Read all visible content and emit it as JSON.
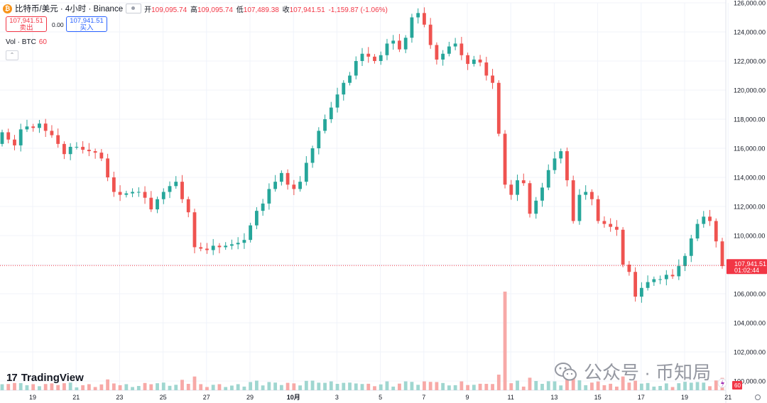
{
  "header": {
    "coin_symbol": "₿",
    "symbol": "比特币/美元 · 4小时 · Binance",
    "ohlc": [
      {
        "label": "开",
        "value": "109,095.74"
      },
      {
        "label": "高",
        "value": "109,095.74"
      },
      {
        "label": "低",
        "value": "107,489.38"
      },
      {
        "label": "收",
        "value": "107,941.51"
      }
    ],
    "change": "-1,159.87 (-1.06%)"
  },
  "trade": {
    "sell_price": "107,941.51",
    "sell_label": "卖出",
    "spread": "0.00",
    "buy_price": "107,941.51",
    "buy_label": "买入"
  },
  "volume_legend": {
    "label": "Vol · BTC",
    "value": "60"
  },
  "price_label": {
    "price": "107,941.51",
    "countdown": "01:02:44"
  },
  "volume_badge": "60",
  "logo_text": "TradingView",
  "watermark": "公众号 · 币知局",
  "colors": {
    "up": "#26a69a",
    "down": "#ef5350",
    "up_vol": "#9fd6d0",
    "down_vol": "#f7a9a7",
    "price_line": "#f23645",
    "grid": "#f0f3fa"
  },
  "chart_data": {
    "type": "candlestick",
    "y_axis": {
      "min": 100000,
      "max": 126000,
      "ticks": [
        "126,000.00",
        "124,000.00",
        "122,000.00",
        "120,000.00",
        "118,000.00",
        "116,000.00",
        "114,000.00",
        "112,000.00",
        "110,000.00",
        "108,000.00",
        "106,000.00",
        "104,000.00",
        "102,000.00",
        "100,000.00"
      ]
    },
    "x_ticks": [
      "19",
      "21",
      "23",
      "25",
      "27",
      "29",
      "10月",
      "3",
      "5",
      "7",
      "9",
      "11",
      "13",
      "15",
      "17",
      "19",
      "21"
    ],
    "last_price": 107941.51,
    "series_close": [
      117100,
      116600,
      116200,
      117300,
      117500,
      117400,
      117700,
      117200,
      116900,
      116300,
      115600,
      116100,
      116100,
      115900,
      115800,
      115700,
      115300,
      114000,
      113000,
      112800,
      112900,
      113000,
      113000,
      112600,
      111800,
      112500,
      113000,
      113400,
      113700,
      112500,
      111600,
      109200,
      109100,
      109000,
      109300,
      109200,
      109300,
      109400,
      109500,
      109700,
      110700,
      111700,
      112200,
      113200,
      113700,
      114300,
      113500,
      113200,
      113700,
      115000,
      116000,
      117200,
      118000,
      118800,
      119700,
      120500,
      121000,
      122000,
      122500,
      122300,
      122000,
      122400,
      123200,
      123400,
      122800,
      123600,
      125000,
      125300,
      124500,
      123100,
      122100,
      122500,
      123000,
      123200,
      122400,
      121800,
      122100,
      121900,
      121000,
      120500,
      117000,
      113500,
      112800,
      113800,
      113600,
      111500,
      112400,
      113300,
      114500,
      115300,
      115800,
      113800,
      111000,
      112800,
      113000,
      112500,
      111000,
      110800,
      110600,
      110400,
      108000,
      107500,
      105800,
      106400,
      106800,
      107000,
      107000,
      107300,
      107200,
      107900,
      108600,
      109800,
      110800,
      111300,
      111000,
      109600,
      107900
    ]
  }
}
